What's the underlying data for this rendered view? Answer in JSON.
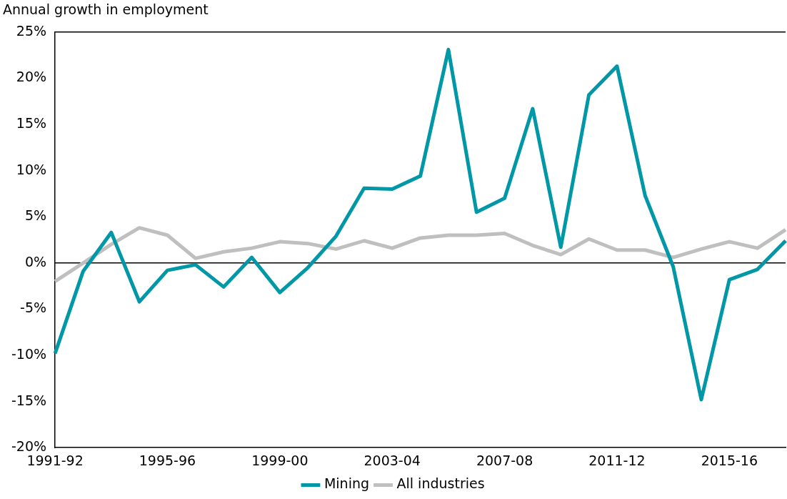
{
  "chart_data": {
    "type": "line",
    "title": "Annual growth in employment",
    "categories": [
      "1991-92",
      null,
      null,
      null,
      "1995-96",
      null,
      null,
      null,
      "1999-00",
      null,
      null,
      null,
      "2003-04",
      null,
      null,
      null,
      "2007-08",
      null,
      null,
      null,
      "2011-12",
      null,
      null,
      null,
      "2015-16",
      null,
      null
    ],
    "series": [
      {
        "name": "Mining",
        "color": "#0097a7",
        "values": [
          -9.8,
          -0.9,
          3.3,
          -4.2,
          -0.8,
          -0.2,
          -2.6,
          0.6,
          -3.2,
          -0.5,
          2.9,
          8.1,
          8.0,
          9.4,
          23.1,
          5.5,
          7.0,
          16.7,
          1.7,
          18.2,
          21.3,
          7.3,
          -0.4,
          -14.8,
          -1.8,
          -0.7,
          2.4
        ]
      },
      {
        "name": "All industries",
        "color": "#bfbfbf",
        "values": [
          -2.0,
          0.0,
          2.0,
          3.8,
          3.0,
          0.5,
          1.2,
          1.6,
          2.3,
          2.1,
          1.5,
          2.4,
          1.6,
          2.7,
          3.0,
          3.0,
          3.2,
          1.9,
          0.9,
          2.6,
          1.4,
          1.4,
          0.6,
          1.5,
          2.3,
          1.6,
          3.6
        ]
      }
    ],
    "ylim": [
      -20,
      25
    ],
    "yticks": [
      {
        "value": -20,
        "label": "-20%"
      },
      {
        "value": -15,
        "label": "-15%"
      },
      {
        "value": -10,
        "label": "-10%"
      },
      {
        "value": -5,
        "label": "-5%"
      },
      {
        "value": 0,
        "label": "0%"
      },
      {
        "value": 5,
        "label": "5%"
      },
      {
        "value": 10,
        "label": "10%"
      },
      {
        "value": 15,
        "label": "15%"
      },
      {
        "value": 20,
        "label": "20%"
      },
      {
        "value": 25,
        "label": "25%"
      }
    ],
    "ref_lines": [
      {
        "axis": "y",
        "value": 0,
        "color": "#000000"
      }
    ],
    "grid": false,
    "legend": "bottom",
    "marker": "none",
    "line_style": "solid"
  }
}
